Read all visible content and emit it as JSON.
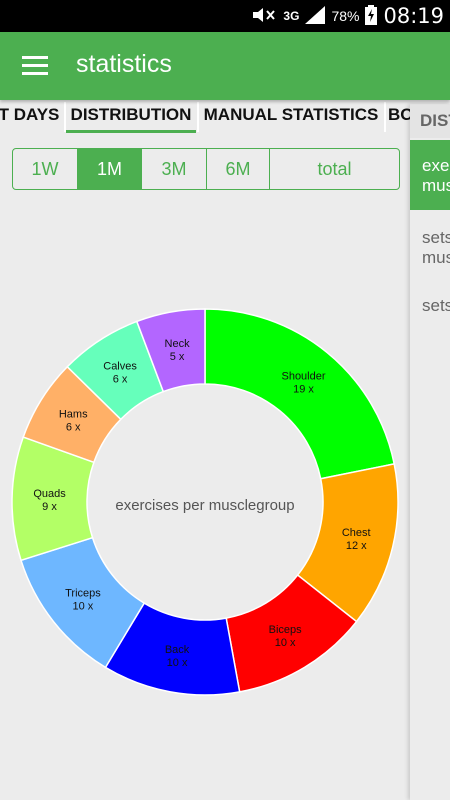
{
  "statusbar": {
    "network": "3G",
    "battery": "78%",
    "time": "08:19"
  },
  "appbar": {
    "title": "statistics"
  },
  "tabs": [
    {
      "label": "T DAYS",
      "active": false
    },
    {
      "label": "DISTRIBUTION",
      "active": true
    },
    {
      "label": "MANUAL STATISTICS",
      "active": false
    },
    {
      "label": "BO",
      "active": false
    }
  ],
  "range": [
    {
      "label": "1W",
      "active": false
    },
    {
      "label": "1M",
      "active": true
    },
    {
      "label": "3M",
      "active": false
    },
    {
      "label": "6M",
      "active": false
    },
    {
      "label": "total",
      "active": false
    }
  ],
  "side_panel": {
    "header": "DISTI",
    "items": [
      {
        "line1": "exerc",
        "line2": "musc",
        "active": true
      },
      {
        "line1": "sets",
        "line2": "musc",
        "active": false
      },
      {
        "line1": "sets",
        "line2": "",
        "active": false
      }
    ]
  },
  "chart_data": {
    "type": "pie",
    "title": "exercises per musclegroup",
    "categories": [
      "Shoulder",
      "Chest",
      "Biceps",
      "Back",
      "Triceps",
      "Quads",
      "Hams",
      "Calves",
      "Neck"
    ],
    "values": [
      19,
      12,
      10,
      10,
      10,
      9,
      6,
      6,
      5
    ],
    "value_labels": [
      "19 x",
      "12 x",
      "10 x",
      "10 x",
      "10 x",
      "9 x",
      "6 x",
      "6 x",
      "5 x"
    ],
    "colors": [
      "#00ff00",
      "#ffa500",
      "#ff0000",
      "#0000ff",
      "#6eb7ff",
      "#b3ff66",
      "#ffb067",
      "#66ffbb",
      "#b366ff"
    ]
  }
}
